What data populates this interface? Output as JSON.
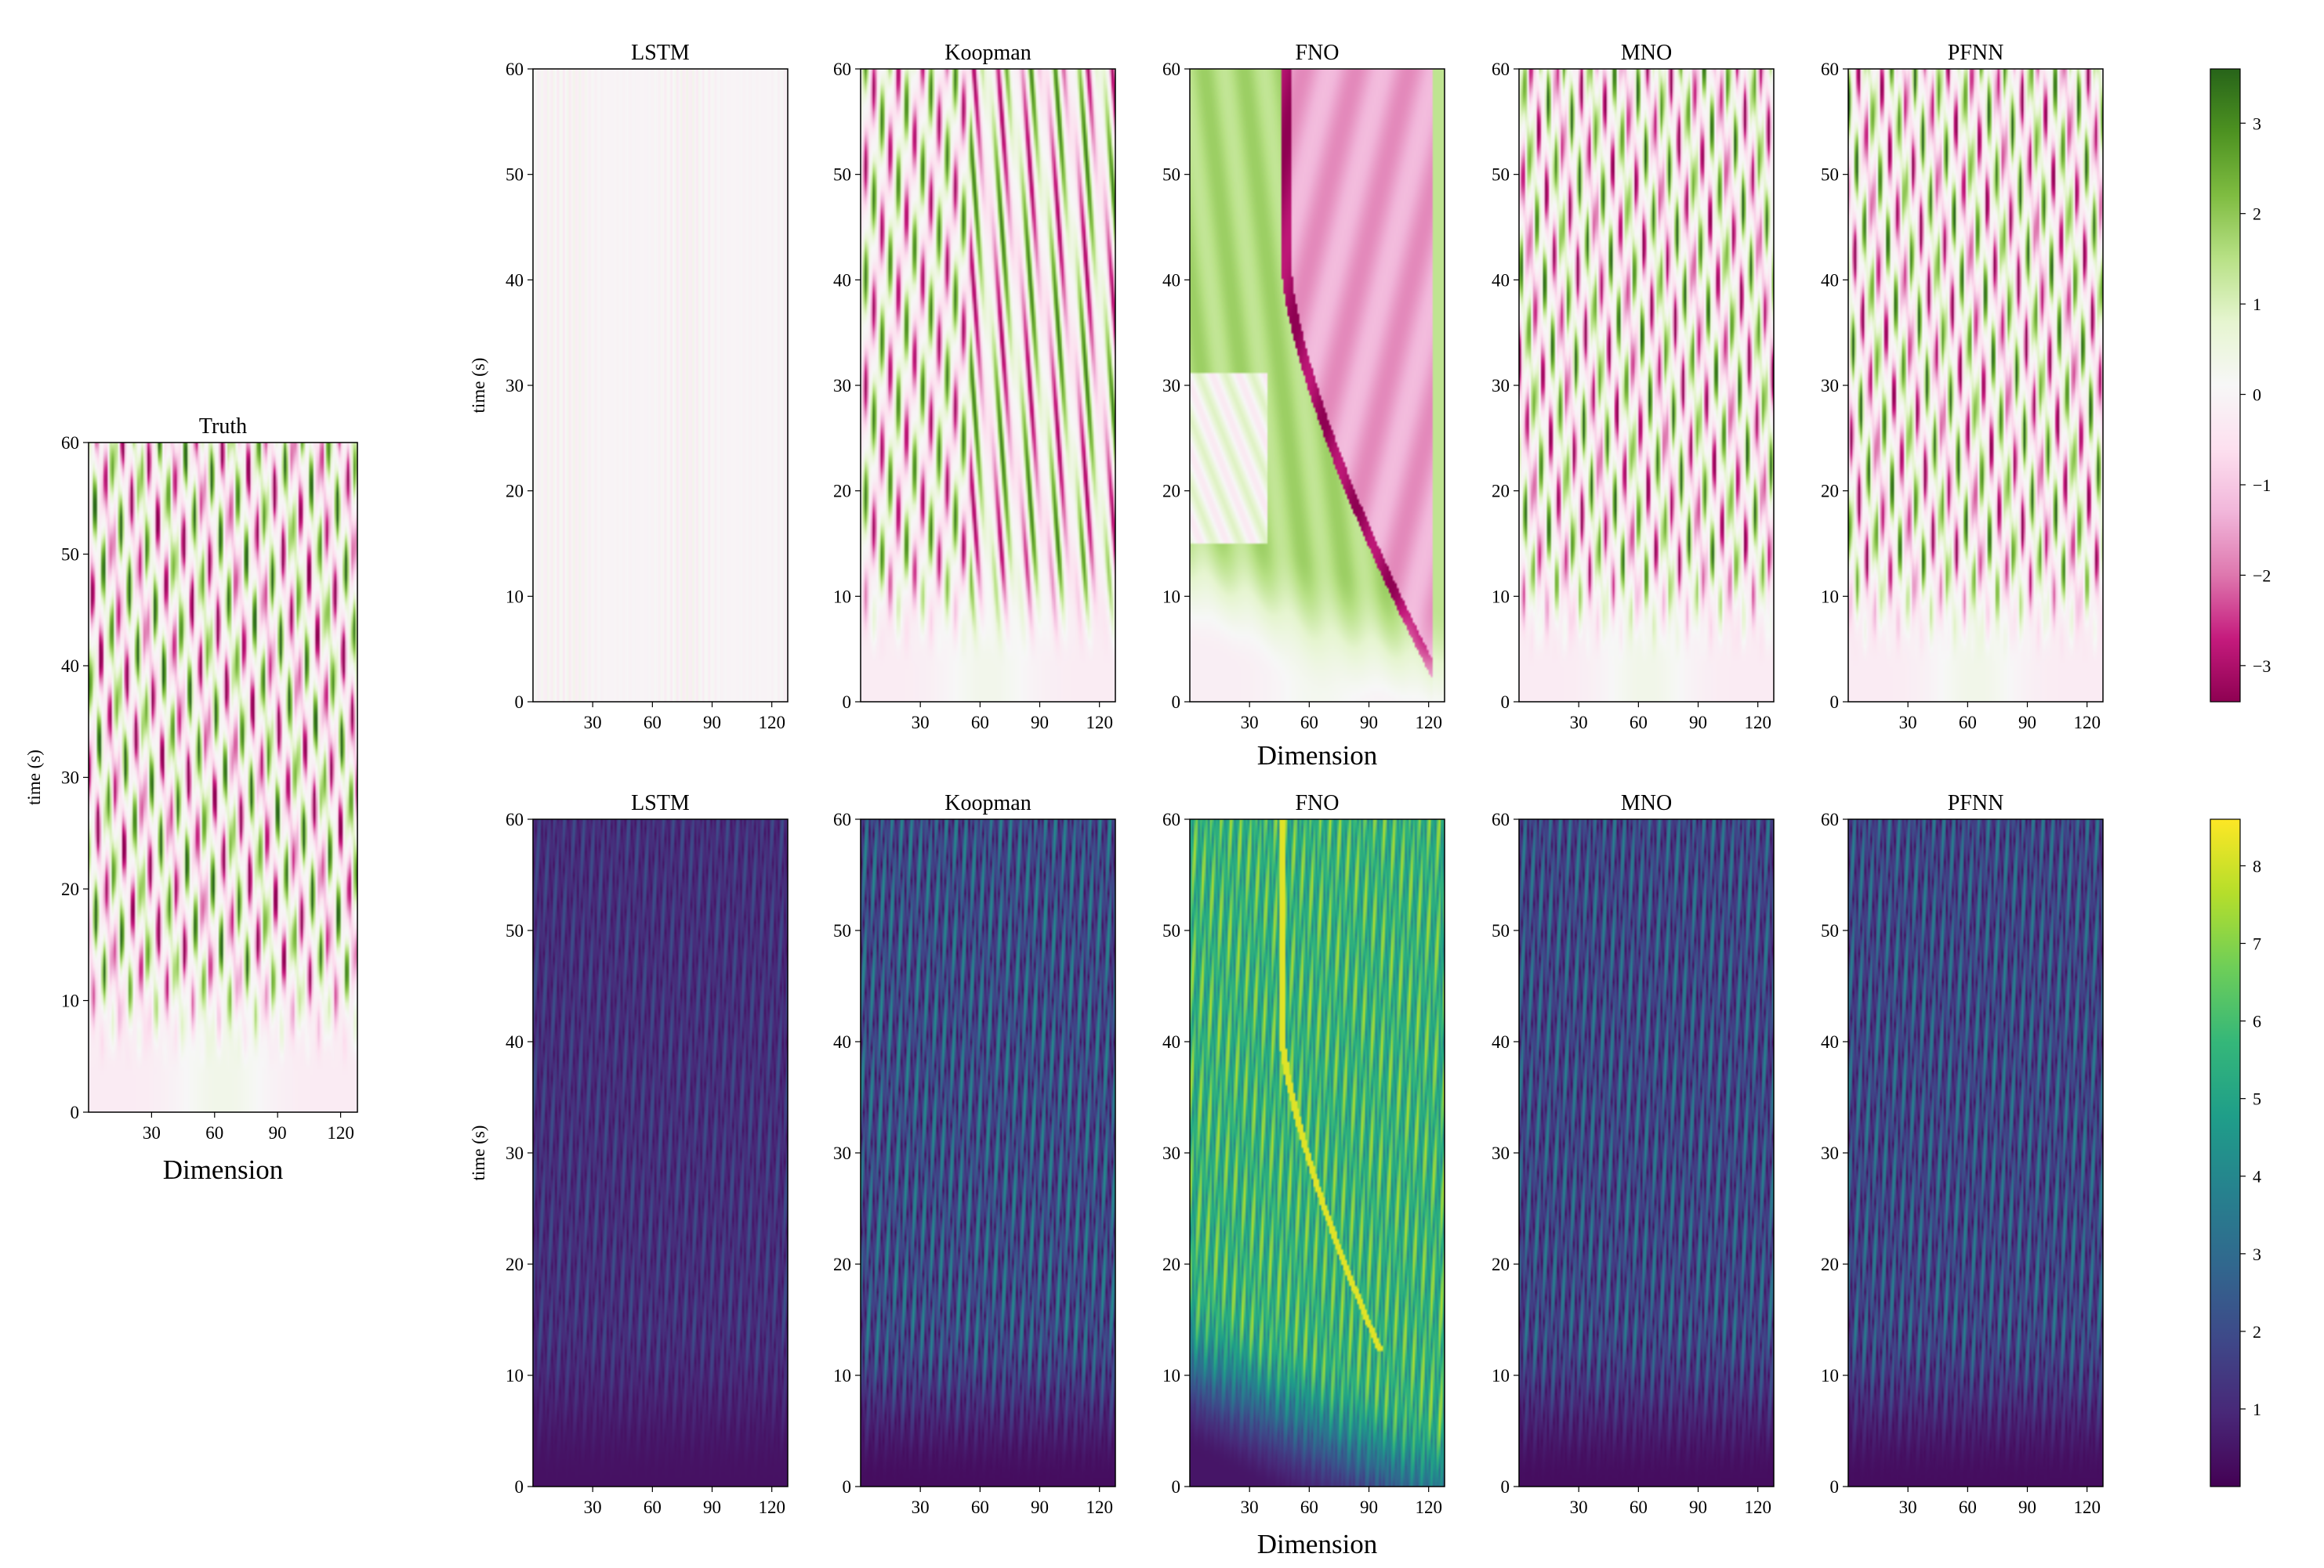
{
  "figure": {
    "colormaps": {
      "prediction": [
        "#8e0152",
        "#c51b7d",
        "#de77ae",
        "#f1b6da",
        "#fde0ef",
        "#f7f7f7",
        "#e6f5d0",
        "#b8e186",
        "#7fbc41",
        "#4d9221",
        "#276419"
      ],
      "error": [
        "#440154",
        "#482878",
        "#3e4989",
        "#31688e",
        "#26828e",
        "#1f9e89",
        "#35b779",
        "#6ece58",
        "#b5de2b",
        "#fde725"
      ]
    }
  },
  "chart_data": [
    {
      "type": "heatmap",
      "title": "Truth",
      "xlabel": "Dimension",
      "ylabel": "time (s)",
      "xlim": [
        0,
        128
      ],
      "ylim": [
        0,
        60
      ],
      "xticks": [
        "30",
        "60",
        "90",
        "120"
      ],
      "yticks": [
        "0",
        "10",
        "20",
        "30",
        "40",
        "50",
        "60"
      ],
      "colormap": "PiYG",
      "pattern": "Kuramoto-Sivashinsky-like traveling wave streaks; smooth low-amplitude field for t<10, chaotic pink/green streaks thereafter"
    },
    {
      "type": "heatmap",
      "title": "LSTM",
      "ylabel": "time (s)",
      "xlim": [
        0,
        128
      ],
      "ylim": [
        0,
        60
      ],
      "xticks": [
        "30",
        "60",
        "90",
        "120"
      ],
      "yticks": [
        "0",
        "10",
        "20",
        "30",
        "40",
        "50",
        "60"
      ],
      "colormap": "PiYG",
      "pattern": "faint vertical stripes near zero"
    },
    {
      "type": "heatmap",
      "title": "Koopman",
      "xlim": [
        0,
        128
      ],
      "ylim": [
        0,
        60
      ],
      "xticks": [
        "30",
        "60",
        "90",
        "120"
      ],
      "yticks": [
        "0",
        "10",
        "20",
        "30",
        "40",
        "50",
        "60"
      ],
      "colormap": "PiYG",
      "pattern": "diagonal streaks splitting around x≈55"
    },
    {
      "type": "heatmap",
      "title": "FNO",
      "xlabel": "Dimension",
      "xlim": [
        0,
        128
      ],
      "ylim": [
        0,
        60
      ],
      "xticks": [
        "30",
        "60",
        "90",
        "120"
      ],
      "yticks": [
        "0",
        "10",
        "20",
        "30",
        "40",
        "50",
        "60"
      ],
      "colormap": "PiYG",
      "pattern": "large green region on left, pink region on right separated by a curved front"
    },
    {
      "type": "heatmap",
      "title": "MNO",
      "xlim": [
        0,
        128
      ],
      "ylim": [
        0,
        60
      ],
      "xticks": [
        "30",
        "60",
        "90",
        "120"
      ],
      "yticks": [
        "0",
        "10",
        "20",
        "30",
        "40",
        "50",
        "60"
      ],
      "colormap": "PiYG",
      "pattern": "chaotic streaks similar to Truth"
    },
    {
      "type": "heatmap",
      "title": "PFNN",
      "xlim": [
        0,
        128
      ],
      "ylim": [
        0,
        60
      ],
      "xticks": [
        "30",
        "60",
        "90",
        "120"
      ],
      "yticks": [
        "0",
        "10",
        "20",
        "30",
        "40",
        "50",
        "60"
      ],
      "colormap": "PiYG",
      "pattern": "chaotic streaks similar to Truth"
    },
    {
      "type": "heatmap",
      "title": "LSTM",
      "ylabel": "time (s)",
      "xlim": [
        0,
        128
      ],
      "ylim": [
        0,
        60
      ],
      "xticks": [
        "30",
        "60",
        "90",
        "120"
      ],
      "yticks": [
        "0",
        "10",
        "20",
        "30",
        "40",
        "50",
        "60"
      ],
      "colormap": "viridis",
      "pattern": "low error, fine streaks"
    },
    {
      "type": "heatmap",
      "title": "Koopman",
      "xlim": [
        0,
        128
      ],
      "ylim": [
        0,
        60
      ],
      "xticks": [
        "30",
        "60",
        "90",
        "120"
      ],
      "yticks": [
        "0",
        "10",
        "20",
        "30",
        "40",
        "50",
        "60"
      ],
      "colormap": "viridis",
      "pattern": "moderate error streaks"
    },
    {
      "type": "heatmap",
      "title": "FNO",
      "xlabel": "Dimension",
      "xlim": [
        0,
        128
      ],
      "ylim": [
        0,
        60
      ],
      "xticks": [
        "30",
        "60",
        "90",
        "120"
      ],
      "yticks": [
        "0",
        "10",
        "20",
        "30",
        "40",
        "50",
        "60"
      ],
      "colormap": "viridis",
      "pattern": "high error with bright yellow front line"
    },
    {
      "type": "heatmap",
      "title": "MNO",
      "xlim": [
        0,
        128
      ],
      "ylim": [
        0,
        60
      ],
      "xticks": [
        "30",
        "60",
        "90",
        "120"
      ],
      "yticks": [
        "0",
        "10",
        "20",
        "30",
        "40",
        "50",
        "60"
      ],
      "colormap": "viridis",
      "pattern": "moderate error streaks"
    },
    {
      "type": "heatmap",
      "title": "PFNN",
      "xlim": [
        0,
        128
      ],
      "ylim": [
        0,
        60
      ],
      "xticks": [
        "30",
        "60",
        "90",
        "120"
      ],
      "yticks": [
        "0",
        "10",
        "20",
        "30",
        "40",
        "50",
        "60"
      ],
      "colormap": "viridis",
      "pattern": "moderate error streaks"
    }
  ],
  "colorbars": [
    {
      "colormap": "PiYG",
      "range": [
        -3.4,
        3.6
      ],
      "ticks": [
        "3",
        "2",
        "1",
        "0",
        "−1",
        "−2",
        "−3"
      ],
      "tick_values": [
        3,
        2,
        1,
        0,
        -1,
        -2,
        -3
      ]
    },
    {
      "colormap": "viridis",
      "range": [
        0,
        8.6
      ],
      "ticks": [
        "8",
        "7",
        "6",
        "5",
        "4",
        "3",
        "2",
        "1"
      ],
      "tick_values": [
        8,
        7,
        6,
        5,
        4,
        3,
        2,
        1
      ]
    }
  ]
}
